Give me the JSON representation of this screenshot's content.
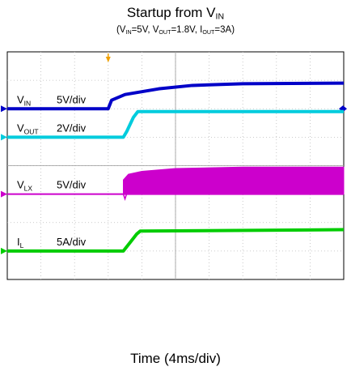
{
  "title": {
    "main": "Startup from V",
    "main_sub": "IN"
  },
  "subtitle": {
    "open": "(",
    "vin_sym": "V",
    "vin_sub": "IN",
    "vin_val": "=5V, ",
    "vout_sym": "V",
    "vout_sub": "OUT",
    "vout_val": "=1.8V, ",
    "iout_sym": "I",
    "iout_sub": "OUT",
    "iout_val": "=3A)"
  },
  "xlabel": "Time (4ms/div)",
  "chart_data": {
    "type": "line",
    "title": "Startup from VIN",
    "subtitle": "(VIN=5V, VOUT=1.8V, IOUT=3A)",
    "xlabel": "Time (4ms/div)",
    "x_divisions": 10,
    "y_divisions": 8,
    "grid": true,
    "trigger_marker": {
      "time_div": 3.0
    },
    "series": [
      {
        "name": "VIN",
        "label_sym": "V",
        "label_sub": "IN",
        "scale": "5V/div",
        "color": "#0000c8",
        "ref_div": 6.0,
        "marker": "right",
        "points": [
          [
            0,
            0
          ],
          [
            3.0,
            0
          ],
          [
            3.1,
            0.3
          ],
          [
            3.5,
            0.5
          ],
          [
            4.5,
            0.7
          ],
          [
            5.5,
            0.82
          ],
          [
            7.0,
            0.88
          ],
          [
            10.0,
            0.9
          ]
        ]
      },
      {
        "name": "VOUT",
        "label_sym": "V",
        "label_sub": "OUT",
        "scale": "2V/div",
        "color": "#00ccdd",
        "ref_div": 5.0,
        "marker": "none",
        "points": [
          [
            0,
            0
          ],
          [
            3.45,
            0
          ],
          [
            3.55,
            0.2
          ],
          [
            3.75,
            0.7
          ],
          [
            3.88,
            0.9
          ],
          [
            10.0,
            0.9
          ]
        ]
      },
      {
        "name": "VLX",
        "label_sym": "V",
        "label_sub": "LX",
        "scale": "5V/div",
        "color": "#cc00cc",
        "ref_div": 3.0,
        "marker": "none",
        "envelope": {
          "start_div": 3.45,
          "low": 0,
          "high_points": [
            [
              3.45,
              0.5
            ],
            [
              3.6,
              0.7
            ],
            [
              4.0,
              0.8
            ],
            [
              5.0,
              0.9
            ],
            [
              7.0,
              0.95
            ],
            [
              10.0,
              0.95
            ]
          ]
        }
      },
      {
        "name": "IL",
        "label_sym": "I",
        "label_sub": "L",
        "scale": "5A/div",
        "color": "#00cc00",
        "ref_div": 1.0,
        "marker": "none",
        "points": [
          [
            0,
            0
          ],
          [
            3.45,
            0
          ],
          [
            3.65,
            0.3
          ],
          [
            3.85,
            0.6
          ],
          [
            3.95,
            0.7
          ],
          [
            10.0,
            0.75
          ]
        ]
      }
    ]
  }
}
